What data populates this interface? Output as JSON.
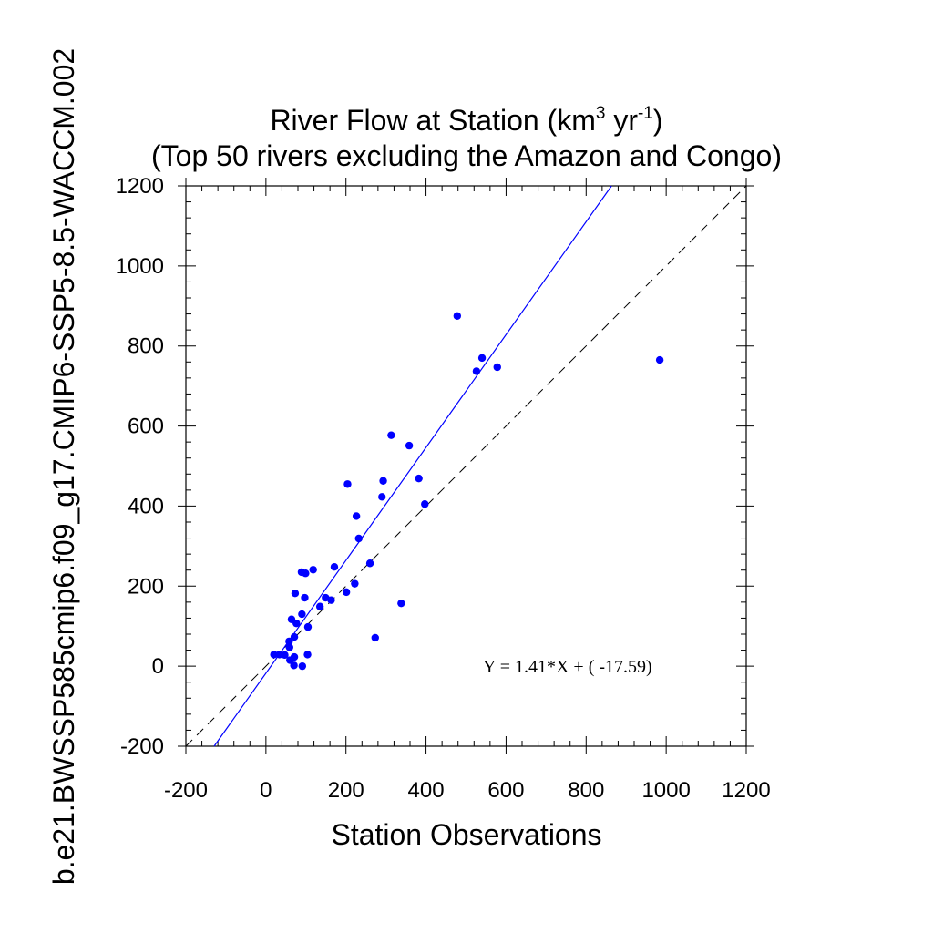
{
  "chart_data": {
    "type": "scatter",
    "title_main": "River Flow at Station (km",
    "title_sup1": "3",
    "title_mid": " yr",
    "title_sup2": "-1",
    "title_end": ")",
    "subtitle": "(Top 50 rivers excluding the Amazon and Congo)",
    "xlabel": "Station Observations",
    "ylabel": "b.e21.BWSSP585cmip6.f09_g17.CMIP6-SSP5-8.5-WACCM.002",
    "xlim": [
      -200,
      1200
    ],
    "ylim": [
      -200,
      1200
    ],
    "xticks": [
      "-200",
      "0",
      "200",
      "400",
      "600",
      "800",
      "1000",
      "1200"
    ],
    "yticks": [
      "-200",
      "0",
      "200",
      "400",
      "600",
      "800",
      "1000",
      "1200"
    ],
    "equation": "Y =  1.41*X + (  -17.59)",
    "fit": {
      "slope": 1.41,
      "intercept": -17.59,
      "color": "#0000ff"
    },
    "reference_line": {
      "slope": 1,
      "intercept": 0,
      "style": "dashed",
      "color": "#000000"
    },
    "point_color": "#0000ff",
    "points": [
      {
        "x": 478,
        "y": 875
      },
      {
        "x": 984,
        "y": 765
      },
      {
        "x": 540,
        "y": 770
      },
      {
        "x": 526,
        "y": 737
      },
      {
        "x": 578,
        "y": 747
      },
      {
        "x": 313,
        "y": 577
      },
      {
        "x": 358,
        "y": 551
      },
      {
        "x": 204,
        "y": 455
      },
      {
        "x": 293,
        "y": 463
      },
      {
        "x": 382,
        "y": 469
      },
      {
        "x": 290,
        "y": 423
      },
      {
        "x": 397,
        "y": 405
      },
      {
        "x": 226,
        "y": 375
      },
      {
        "x": 232,
        "y": 319
      },
      {
        "x": 260,
        "y": 257
      },
      {
        "x": 171,
        "y": 248
      },
      {
        "x": 118,
        "y": 241
      },
      {
        "x": 89,
        "y": 235
      },
      {
        "x": 99,
        "y": 232
      },
      {
        "x": 222,
        "y": 206
      },
      {
        "x": 201,
        "y": 185
      },
      {
        "x": 73,
        "y": 182
      },
      {
        "x": 97,
        "y": 171
      },
      {
        "x": 149,
        "y": 171
      },
      {
        "x": 163,
        "y": 165
      },
      {
        "x": 338,
        "y": 157
      },
      {
        "x": 135,
        "y": 149
      },
      {
        "x": 90,
        "y": 130
      },
      {
        "x": 64,
        "y": 117
      },
      {
        "x": 76,
        "y": 107
      },
      {
        "x": 105,
        "y": 98
      },
      {
        "x": 71,
        "y": 73
      },
      {
        "x": 273,
        "y": 71
      },
      {
        "x": 58,
        "y": 62
      },
      {
        "x": 59,
        "y": 47
      },
      {
        "x": 20,
        "y": 29
      },
      {
        "x": 34,
        "y": 29
      },
      {
        "x": 47,
        "y": 28
      },
      {
        "x": 104,
        "y": 29
      },
      {
        "x": 71,
        "y": 23
      },
      {
        "x": 60,
        "y": 15
      },
      {
        "x": 70,
        "y": 2
      },
      {
        "x": 91,
        "y": 0
      }
    ]
  }
}
